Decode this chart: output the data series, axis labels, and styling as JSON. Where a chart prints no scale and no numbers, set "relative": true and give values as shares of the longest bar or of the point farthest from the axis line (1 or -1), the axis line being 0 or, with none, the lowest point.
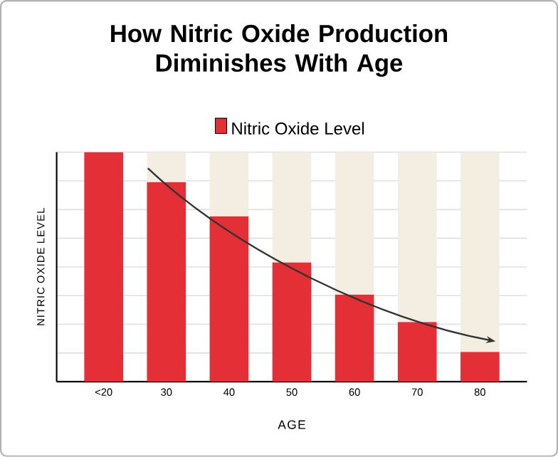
{
  "chart_data": {
    "type": "bar",
    "title": "How Nitric Oxide Production Diminishes With Age",
    "xlabel": "AGE",
    "ylabel": "NITRIC OXIDE LEVEL",
    "categories": [
      "<20",
      "30",
      "40",
      "50",
      "60",
      "70",
      "80"
    ],
    "stacked": true,
    "relative": true,
    "grid": "y",
    "legend": "top",
    "series": [
      {
        "name": "Nitric Oxide Level",
        "color": "#e32f35",
        "values": [
          1.0,
          0.87,
          0.72,
          0.52,
          0.38,
          0.26,
          0.13
        ]
      },
      {
        "color": "#f3ede2",
        "values": [
          0.0,
          0.13,
          0.28,
          0.48,
          0.62,
          0.74,
          0.87
        ]
      }
    ]
  }
}
